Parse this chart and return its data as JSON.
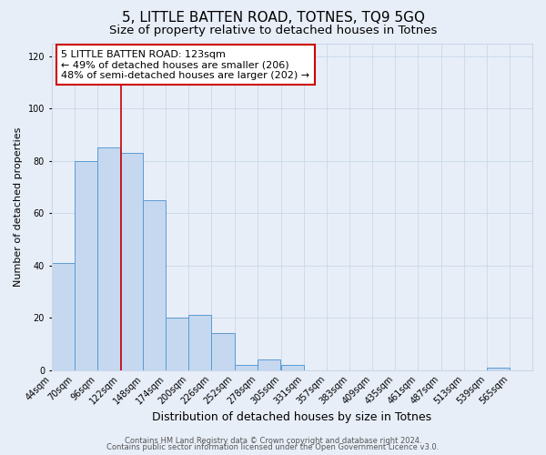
{
  "title": "5, LITTLE BATTEN ROAD, TOTNES, TQ9 5GQ",
  "subtitle": "Size of property relative to detached houses in Totnes",
  "xlabel": "Distribution of detached houses by size in Totnes",
  "ylabel": "Number of detached properties",
  "bin_labels": [
    "44sqm",
    "70sqm",
    "96sqm",
    "122sqm",
    "148sqm",
    "174sqm",
    "200sqm",
    "226sqm",
    "252sqm",
    "278sqm",
    "305sqm",
    "331sqm",
    "357sqm",
    "383sqm",
    "409sqm",
    "435sqm",
    "461sqm",
    "487sqm",
    "513sqm",
    "539sqm",
    "565sqm"
  ],
  "bin_edges": [
    44,
    70,
    96,
    122,
    148,
    174,
    200,
    226,
    252,
    278,
    305,
    331,
    357,
    383,
    409,
    435,
    461,
    487,
    513,
    539,
    565,
    591
  ],
  "bar_heights": [
    41,
    80,
    85,
    83,
    65,
    20,
    21,
    14,
    2,
    4,
    2,
    0,
    0,
    0,
    0,
    0,
    0,
    0,
    0,
    1,
    0
  ],
  "bar_color": "#c5d8ef",
  "bar_edge_color": "#5b9bd5",
  "vline_x": 123,
  "vline_color": "#cc0000",
  "annotation_text": "5 LITTLE BATTEN ROAD: 123sqm\n← 49% of detached houses are smaller (206)\n48% of semi-detached houses are larger (202) →",
  "annotation_box_color": "white",
  "annotation_box_edge_color": "#cc0000",
  "ylim": [
    0,
    125
  ],
  "yticks": [
    0,
    20,
    40,
    60,
    80,
    100,
    120
  ],
  "grid_color": "#c8d8e8",
  "background_color": "#e8eef8",
  "footer_line1": "Contains HM Land Registry data © Crown copyright and database right 2024.",
  "footer_line2": "Contains public sector information licensed under the Open Government Licence v3.0.",
  "title_fontsize": 11,
  "subtitle_fontsize": 9.5,
  "xlabel_fontsize": 9,
  "ylabel_fontsize": 8,
  "tick_fontsize": 7,
  "annotation_fontsize": 8,
  "footer_fontsize": 6
}
